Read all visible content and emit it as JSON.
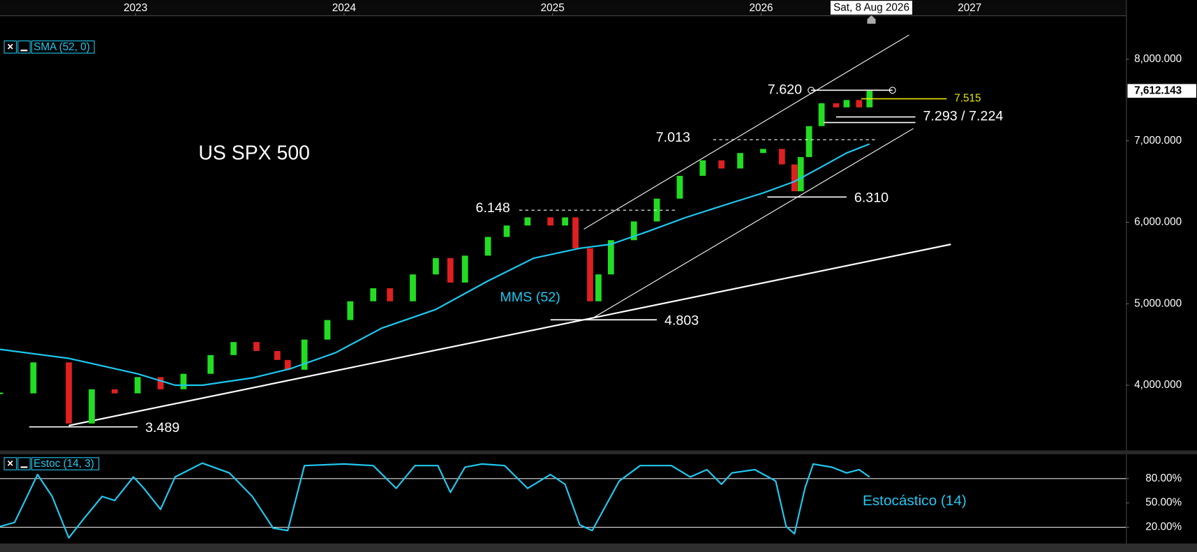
{
  "chart_data": [
    {
      "type": "candlestick",
      "title": "US SPX 500",
      "xlim": [
        2022.35,
        2027.75
      ],
      "xticks": [
        2023,
        2024,
        2025,
        2026,
        2027
      ],
      "ylim": [
        3200,
        8530
      ],
      "yticks": [
        {
          "value": 4000,
          "label": "4,000.000"
        },
        {
          "value": 5000,
          "label": "5,000.000"
        },
        {
          "value": 6000,
          "label": "6,000.000"
        },
        {
          "value": 7000,
          "label": "7,000.000"
        },
        {
          "value": 8000,
          "label": "8,000.000"
        }
      ],
      "grid": false,
      "series": [
        {
          "up_color": "#22dd22",
          "down_color": "#e02020",
          "x": [
            2022.35,
            2022.51,
            2022.68,
            2022.79,
            2022.9,
            2023.01,
            2023.12,
            2023.23,
            2023.36,
            2023.47,
            2023.58,
            2023.68,
            2023.73,
            2023.81,
            2023.92,
            2024.03,
            2024.14,
            2024.22,
            2024.33,
            2024.44,
            2024.51,
            2024.58,
            2024.69,
            2024.78,
            2024.88,
            2024.99,
            2025.06,
            2025.11,
            2025.18,
            2025.22,
            2025.28,
            2025.39,
            2025.5,
            2025.61,
            2025.72,
            2025.81,
            2025.9,
            2026.01,
            2026.1,
            2026.16,
            2026.19,
            2026.23,
            2026.29,
            2026.36,
            2026.41,
            2026.47,
            2026.52
          ],
          "values": [
            3900,
            4280,
            3530,
            3950,
            3900,
            4100,
            3950,
            4140,
            4370,
            4530,
            4420,
            4310,
            4190,
            4560,
            4800,
            5030,
            5190,
            5030,
            5360,
            5560,
            5260,
            5590,
            5820,
            5960,
            6060,
            5960,
            6060,
            5680,
            5030,
            5360,
            5780,
            6010,
            6290,
            6570,
            6760,
            6660,
            6850,
            6900,
            6710,
            6380,
            6800,
            7180,
            7460,
            7410,
            7500,
            7410,
            7612
          ]
        },
        {
          "name": "SMA (52, 0)",
          "label": "MMS (52)",
          "color": "#1ec8f0",
          "x": [
            2022.35,
            2022.68,
            2023.01,
            2023.19,
            2023.32,
            2023.56,
            2023.74,
            2023.96,
            2024.18,
            2024.44,
            2024.69,
            2024.91,
            2025.13,
            2025.28,
            2025.46,
            2025.64,
            2025.86,
            2026.01,
            2026.16,
            2026.29,
            2026.41,
            2026.52
          ],
          "values": [
            4440,
            4330,
            4140,
            4000,
            4000,
            4090,
            4200,
            4400,
            4700,
            4930,
            5280,
            5560,
            5680,
            5730,
            5890,
            6060,
            6240,
            6360,
            6500,
            6680,
            6850,
            6960
          ]
        }
      ],
      "last_price": {
        "value": 7612.143,
        "label": "7,612.143"
      },
      "cursor_label": "Sat, 8 Aug 2026",
      "levels": [
        {
          "values": [
            3489
          ],
          "label": "3.489",
          "x": [
            [
              2022.49,
              2023.01
            ]
          ],
          "label_side": "right",
          "color": "#ffffff",
          "dashed": false
        },
        {
          "values": [
            4803
          ],
          "label": "4.803",
          "x": [
            [
              2024.99,
              2025.5
            ]
          ],
          "label_side": "right",
          "color": "#ffffff",
          "dashed": false
        },
        {
          "values": [
            6148
          ],
          "label": "6.148",
          "x": [
            [
              2024.84,
              2025.59
            ]
          ],
          "label_side": "left",
          "color": "#ffffff",
          "dashed": true
        },
        {
          "values": [
            6310
          ],
          "label": "6.310",
          "x": [
            [
              2026.03,
              2026.41
            ]
          ],
          "label_side": "right",
          "color": "#ffffff",
          "dashed": false
        },
        {
          "values": [
            7013
          ],
          "label": "7.013",
          "x": [
            [
              2025.77,
              2026.56
            ]
          ],
          "label_side": "left",
          "color": "#ffffff",
          "dashed": true
        },
        {
          "values": [
            7620
          ],
          "label": "7.620",
          "x": [
            [
              2026.24,
              2026.63
            ]
          ],
          "label_side": "left",
          "color": "#ffffff",
          "dashed": false,
          "end_markers": true
        },
        {
          "values": [
            7515
          ],
          "label": "7.515",
          "x": [
            [
              2026.48,
              2026.89
            ]
          ],
          "label_side": "right",
          "color": "#e8e800",
          "dashed": false
        },
        {
          "values": [
            7293,
            7224
          ],
          "label": "7.293 / 7.224",
          "x": [
            [
              2026.36,
              2026.74
            ],
            [
              2026.3,
              2026.74
            ]
          ],
          "label_side": "right",
          "color": "#ffffff",
          "dashed": false
        }
      ],
      "trendlines": [
        {
          "x": [
            2022.68,
            2026.91
          ],
          "values": [
            3505,
            5729
          ],
          "color": "#ffffff"
        },
        {
          "x": [
            2025.19,
            2026.73
          ],
          "values": [
            4820,
            7150
          ],
          "color": "#ffffff"
        },
        {
          "x": [
            2025.15,
            2026.71
          ],
          "values": [
            5916,
            8299
          ],
          "color": "#ffffff"
        }
      ]
    },
    {
      "type": "line",
      "xlim": [
        2022.35,
        2027.75
      ],
      "ylim": [
        0,
        110
      ],
      "yticks": [
        {
          "value": 20,
          "label": "20.00%"
        },
        {
          "value": 50,
          "label": "50.00%"
        },
        {
          "value": 80,
          "label": "80.00%"
        }
      ],
      "grid": "extreme-ticks",
      "annotation": "Estocástico (14)",
      "series": [
        {
          "name": "Estoc (14, 3)",
          "color": "#22c8f0",
          "x": [
            2022.35,
            2022.42,
            2022.53,
            2022.6,
            2022.68,
            2022.75,
            2022.84,
            2022.9,
            2022.99,
            2023.04,
            2023.12,
            2023.19,
            2023.32,
            2023.45,
            2023.56,
            2023.66,
            2023.73,
            2023.81,
            2024.0,
            2024.14,
            2024.25,
            2024.34,
            2024.45,
            2024.51,
            2024.58,
            2024.66,
            2024.77,
            2024.88,
            2024.99,
            2025.06,
            2025.13,
            2025.19,
            2025.32,
            2025.42,
            2025.57,
            2025.66,
            2025.74,
            2025.81,
            2025.86,
            2025.97,
            2026.07,
            2026.12,
            2026.16,
            2026.21,
            2026.25,
            2026.34,
            2026.41,
            2026.47,
            2026.52
          ],
          "values": [
            21,
            26,
            85,
            58,
            7,
            30,
            58,
            53,
            82,
            68,
            42,
            82,
            99,
            87,
            58,
            19,
            16,
            96,
            98,
            96,
            68,
            96,
            96,
            63,
            94,
            98,
            96,
            68,
            85,
            73,
            23,
            16,
            77,
            96,
            96,
            82,
            91,
            73,
            87,
            91,
            77,
            21,
            12,
            68,
            98,
            94,
            87,
            91,
            82
          ]
        }
      ]
    }
  ]
}
